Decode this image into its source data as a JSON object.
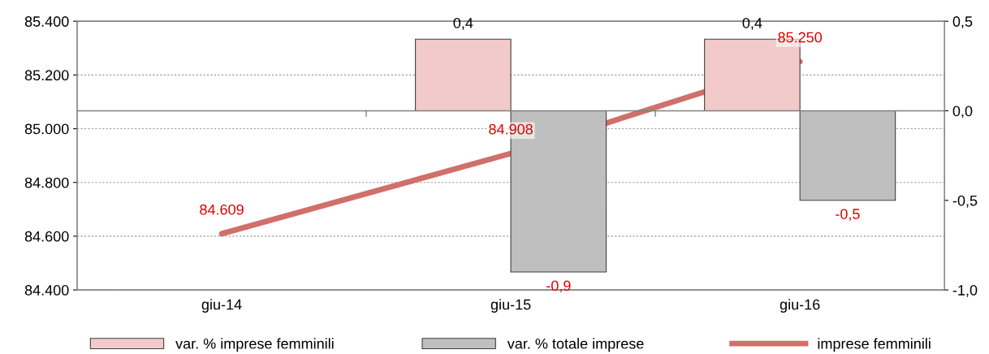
{
  "chart_data": {
    "type": "bar",
    "categories": [
      "giu-14",
      "giu-15",
      "giu-16"
    ],
    "series": [
      {
        "name": "var. % imprese femminili",
        "axis": "y2",
        "color": "#f2caca",
        "values": [
          null,
          0.4,
          0.4
        ],
        "value_labels": [
          null,
          "0,4",
          "0,4"
        ]
      },
      {
        "name": "var. % totale imprese",
        "axis": "y2",
        "color": "#bfbfbf",
        "values": [
          null,
          -0.9,
          -0.5
        ],
        "value_labels": [
          null,
          "-0,9",
          "-0,5"
        ]
      },
      {
        "name": "imprese femminili",
        "type": "line",
        "color": "#d0706a",
        "values": [
          84609,
          84908,
          85250
        ],
        "value_labels": [
          "84.609",
          "84.908",
          "85.250"
        ]
      }
    ],
    "ylim": [
      84400,
      85400
    ],
    "yticks": [
      {
        "value": 84400,
        "label": "84.400"
      },
      {
        "value": 84600,
        "label": "84.600"
      },
      {
        "value": 84800,
        "label": "84.800"
      },
      {
        "value": 85000,
        "label": "85.000"
      },
      {
        "value": 85200,
        "label": "85.200"
      },
      {
        "value": 85400,
        "label": "85.400"
      }
    ],
    "y2lim": [
      -1.0,
      0.5
    ],
    "y2ticks": [
      {
        "value": -1.0,
        "label": "-1,0"
      },
      {
        "value": -0.5,
        "label": "-0,5"
      },
      {
        "value": 0.0,
        "label": "0,0"
      },
      {
        "value": 0.5,
        "label": "0,5"
      }
    ],
    "grid": "y",
    "legend": "bottom",
    "marker": "none"
  }
}
